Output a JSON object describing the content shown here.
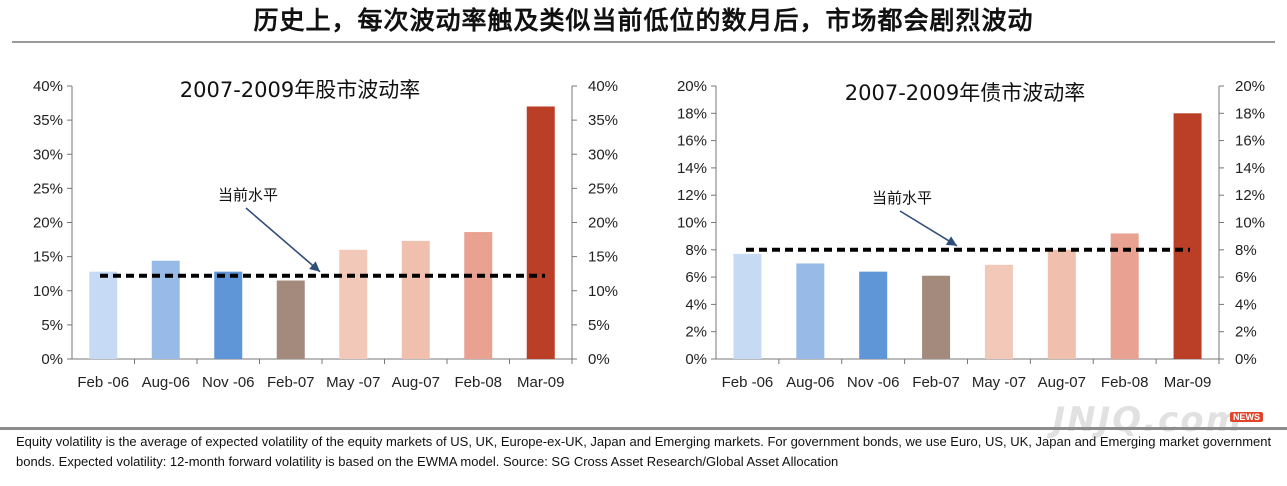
{
  "headline": "历史上，每次波动率触及类似当前低位的数月后，市场都会剧烈波动",
  "chart_data": [
    {
      "type": "bar",
      "title": "2007-2009年股市波动率",
      "categories": [
        "Feb -06",
        "Aug-06",
        "Nov -06",
        "Feb-07",
        "May -07",
        "Aug-07",
        "Feb-08",
        "Mar-09"
      ],
      "values": [
        12.8,
        14.4,
        12.8,
        11.5,
        16.0,
        17.3,
        18.6,
        37.0
      ],
      "bar_colors": [
        "#c6dbf3",
        "#97bbe6",
        "#5f96d8",
        "#a48a7d",
        "#f2c8b8",
        "#f0bfae",
        "#e9a291",
        "#ba3f26"
      ],
      "ylim": [
        0,
        40
      ],
      "yticks": [
        "0%",
        "5%",
        "10%",
        "15%",
        "20%",
        "25%",
        "30%",
        "35%",
        "40%"
      ],
      "current_level": 12.2,
      "annotation": "当前水平",
      "grid": false,
      "dual_axis": true
    },
    {
      "type": "bar",
      "title": "2007-2009年债市波动率",
      "categories": [
        "Feb -06",
        "Aug-06",
        "Nov -06",
        "Feb-07",
        "May -07",
        "Aug-07",
        "Feb-08",
        "Mar-09"
      ],
      "values": [
        7.7,
        7.0,
        6.4,
        6.1,
        6.9,
        8.0,
        9.2,
        18.0
      ],
      "bar_colors": [
        "#c6dbf3",
        "#97bbe6",
        "#5f96d8",
        "#a48a7d",
        "#f2c8b8",
        "#f0bfae",
        "#e9a291",
        "#ba3f26"
      ],
      "ylim": [
        0,
        20
      ],
      "yticks": [
        "0%",
        "2%",
        "4%",
        "6%",
        "8%",
        "10%",
        "12%",
        "14%",
        "16%",
        "18%",
        "20%"
      ],
      "current_level": 8.0,
      "annotation": "当前水平",
      "grid": false,
      "dual_axis": true
    }
  ],
  "footnote": "Equity volatility is the average of expected volatility of the equity markets of US, UK, Europe-ex-UK, Japan and Emerging markets. For government bonds, we use Euro, US, UK, Japan and Emerging market government bonds. Expected volatility: 12-month forward volatility is based on the EWMA model. Source: SG Cross Asset Research/Global Asset Allocation",
  "watermark": "JNJQ.com",
  "watermark_badge": "NEWS"
}
